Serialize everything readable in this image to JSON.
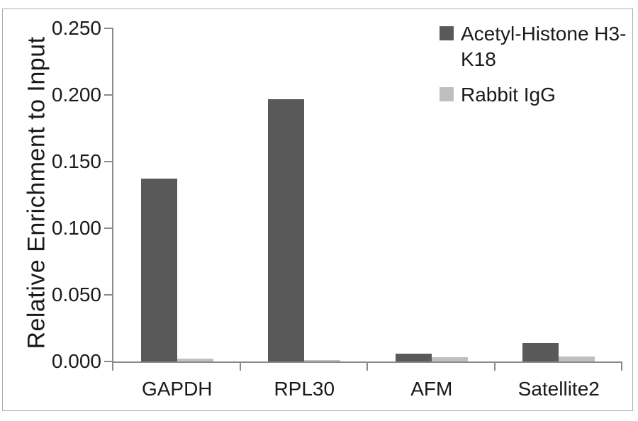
{
  "chart_data": {
    "type": "bar",
    "title": "",
    "xlabel": "",
    "ylabel": "Relative Enrichment to Input",
    "categories": [
      "GAPDH",
      "RPL30",
      "AFM",
      "Satellite2"
    ],
    "series": [
      {
        "name": "Acetyl-Histone H3-K18",
        "color": "#595959",
        "values": [
          0.137,
          0.197,
          0.006,
          0.014
        ]
      },
      {
        "name": "Rabbit IgG",
        "color": "#bfbfbf",
        "values": [
          0.002,
          0.001,
          0.003,
          0.004
        ]
      }
    ],
    "ylim": [
      0,
      0.25
    ],
    "yticks": [
      "0.000",
      "0.050",
      "0.100",
      "0.150",
      "0.200",
      "0.250"
    ],
    "ytick_step": 0.05,
    "grid": false,
    "legend_position": "top-right"
  },
  "colors": {
    "axis": "#8a8a8a",
    "border": "#ababab",
    "text": "#1a1a1a",
    "background": "#ffffff"
  }
}
